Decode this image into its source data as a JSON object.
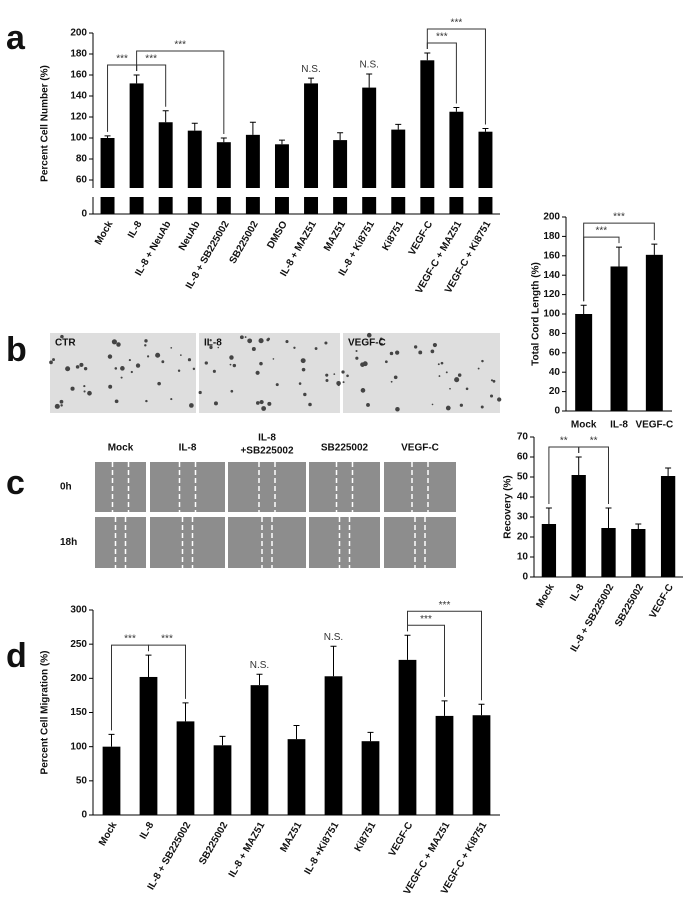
{
  "panels": [
    "a",
    "b",
    "c",
    "d"
  ],
  "images": {
    "b": {
      "labels": [
        "CTR",
        "IL-8",
        "VEGF-C"
      ]
    },
    "c": {
      "columns": [
        "Mock",
        "IL-8",
        [
          "IL-8",
          "+SB225002"
        ],
        "SB225002",
        "VEGF-C"
      ],
      "rows": [
        "0h",
        "18h"
      ]
    }
  },
  "chart_data": [
    {
      "type": "bar",
      "y_label": "Percent Cell Number (%)",
      "color": "#000000",
      "categories": [
        "Mock",
        "IL-8",
        "IL-8 + NeuAb",
        "NeuAb",
        "IL-8 + SB225002",
        "SB225002",
        "DMSO",
        "IL-8 + MAZ51",
        "MAZ51",
        "IL-8 + Ki8751",
        "Ki8751",
        "VEGF-C",
        "VEGF-C + MAZ51",
        "VEGF-C + Ki8751"
      ],
      "values": [
        100,
        152,
        115,
        107,
        96,
        103,
        94,
        152,
        98,
        148,
        108,
        174,
        125,
        106
      ],
      "errors": [
        2,
        8,
        11,
        7,
        4,
        12,
        4,
        5,
        7,
        13,
        5,
        7,
        4,
        3
      ],
      "ylim": [
        0,
        200
      ],
      "yticks": [
        0,
        60,
        80,
        100,
        120,
        140,
        160,
        180,
        200
      ],
      "ybreak": [
        0,
        60
      ],
      "annotations": [
        {
          "text": "***",
          "from": "Mock",
          "to": "IL-8"
        },
        {
          "text": "***",
          "from": "IL-8",
          "to": "IL-8 + NeuAb"
        },
        {
          "text": "***",
          "from": "IL-8",
          "to": "IL-8 + SB225002"
        },
        {
          "text": "N.S.",
          "at": "IL-8 + MAZ51"
        },
        {
          "text": "N.S.",
          "at": "IL-8 + Ki8751"
        },
        {
          "text": "***",
          "from": "VEGF-C",
          "to": "VEGF-C + MAZ51"
        },
        {
          "text": "***",
          "from": "VEGF-C",
          "to": "VEGF-C + Ki8751"
        }
      ]
    },
    {
      "type": "bar",
      "y_label": "Total Cord Length (%)",
      "color": "#000000",
      "categories": [
        "Mock",
        "IL-8",
        "VEGF-C"
      ],
      "values": [
        100,
        149,
        161
      ],
      "errors": [
        9,
        20,
        11
      ],
      "ylim": [
        0,
        200
      ],
      "yticks": [
        0,
        20,
        40,
        60,
        80,
        100,
        120,
        140,
        160,
        180,
        200
      ],
      "annotations": [
        {
          "text": "***",
          "from": "Mock",
          "to": "IL-8"
        },
        {
          "text": "***",
          "from": "Mock",
          "to": "VEGF-C"
        }
      ]
    },
    {
      "type": "bar",
      "y_label": "Recovery (%)",
      "color": "#000000",
      "categories": [
        "Mock",
        "IL-8",
        "IL-8 + SB225002",
        "SB225002",
        "VEGF-C"
      ],
      "values": [
        26.5,
        51,
        24.5,
        24,
        50.5
      ],
      "errors": [
        8,
        9,
        10,
        2.5,
        4
      ],
      "ylim": [
        0,
        70
      ],
      "yticks": [
        0,
        10,
        20,
        30,
        40,
        50,
        60,
        70
      ],
      "annotations": [
        {
          "text": "**",
          "from": "Mock",
          "to": "IL-8"
        },
        {
          "text": "**",
          "from": "IL-8",
          "to": "IL-8 + SB225002"
        }
      ]
    },
    {
      "type": "bar",
      "y_label": "Percent Cell Migration (%)",
      "color": "#000000",
      "categories": [
        "Mock",
        "IL-8",
        "IL-8 + SB225002",
        "SB225002",
        "IL-8 + MAZ51",
        "MAZ51",
        "IL-8 +Ki8751",
        "Ki8751",
        "VEGF-C",
        "VEGF-C + MAZ51",
        "VEGF-C + Ki8751"
      ],
      "values": [
        100,
        202,
        137,
        102,
        190,
        111,
        203,
        108,
        227,
        145,
        146
      ],
      "errors": [
        18,
        32,
        27,
        13,
        16,
        20,
        44,
        13,
        36,
        22,
        16
      ],
      "ylim": [
        0,
        300
      ],
      "yticks": [
        0,
        50,
        100,
        150,
        200,
        250,
        300
      ],
      "annotations": [
        {
          "text": "***",
          "from": "Mock",
          "to": "IL-8"
        },
        {
          "text": "***",
          "from": "IL-8",
          "to": "IL-8 + SB225002"
        },
        {
          "text": "N.S.",
          "at": "IL-8 + MAZ51"
        },
        {
          "text": "N.S.",
          "at": "IL-8 +Ki8751"
        },
        {
          "text": "***",
          "from": "VEGF-C",
          "to": "VEGF-C + MAZ51"
        },
        {
          "text": "***",
          "from": "VEGF-C",
          "to": "VEGF-C + Ki8751"
        }
      ]
    }
  ]
}
